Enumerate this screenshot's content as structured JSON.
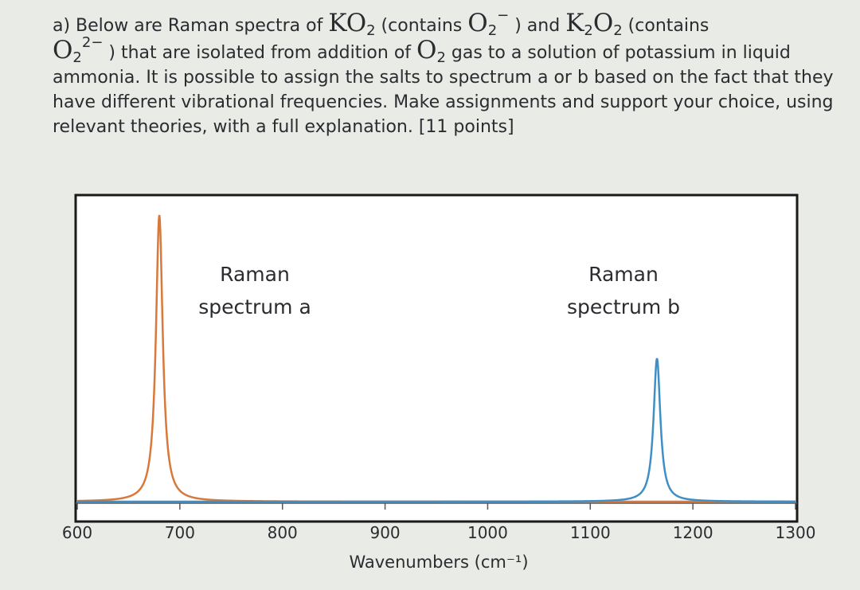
{
  "question": {
    "p1": "a) Below are Raman spectra of ",
    "ko2_k": "K",
    "ko2_o": "O",
    "sub2": "2",
    "p2": " (contains ",
    "o2a": "O",
    "p3": " ) and ",
    "k2o2_k": "K",
    "k2o2_o": "O",
    "p4": " (contains",
    "o2b": "O",
    "sup_2minus": "2−",
    "p5": " ) that are isolated from addition of ",
    "o2c": "O",
    "p6": " gas to a solution of potassium in liquid ammonia. It is possible to assign the salts to spectrum a or b based on the fact that they have different vibrational frequencies. Make assignments and support your choice, using relevant theories, with a full explanation. [11 points]"
  },
  "colors": {
    "spectrum_a": "#d9783a",
    "spectrum_b": "#3f8fc7",
    "frame": "#1a1a1a",
    "axis": "#555555"
  },
  "chart_data": {
    "type": "line",
    "xlabel": "Wavenumbers (cm⁻¹)",
    "xlim": [
      600,
      1300
    ],
    "xticks": [
      600,
      700,
      800,
      900,
      1000,
      1100,
      1200,
      1300
    ],
    "ylim": [
      0,
      1
    ],
    "grid": false,
    "series": [
      {
        "label_line1": "Raman",
        "label_line2": "spectrum a",
        "peak_x": 680,
        "peak_height": 1.0,
        "width": 4
      },
      {
        "label_line1": "Raman",
        "label_line2": "spectrum b",
        "peak_x": 1165,
        "peak_height": 0.5,
        "width": 4
      }
    ]
  }
}
